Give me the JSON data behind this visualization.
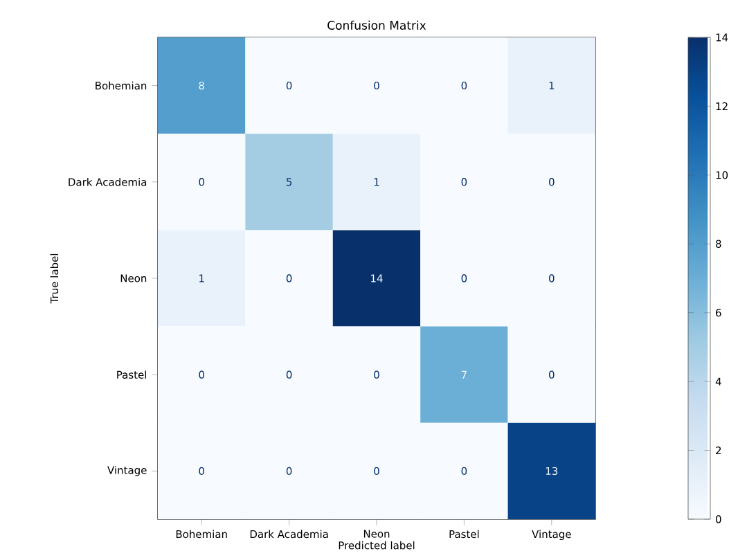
{
  "chart_data": {
    "type": "heatmap",
    "title": "Confusion Matrix",
    "xlabel": "Predicted label",
    "ylabel": "True label",
    "categories": [
      "Bohemian",
      "Dark Academia",
      "Neon",
      "Pastel",
      "Vintage"
    ],
    "y_categories": [
      "Bohemian",
      "Dark Academia",
      "Neon",
      "Pastel",
      "Vintage"
    ],
    "cells": [
      [
        8,
        0,
        0,
        0,
        1
      ],
      [
        0,
        5,
        1,
        0,
        0
      ],
      [
        1,
        0,
        14,
        0,
        0
      ],
      [
        0,
        0,
        0,
        7,
        0
      ],
      [
        0,
        0,
        0,
        0,
        13
      ]
    ],
    "data_labels": true,
    "clim": [
      0,
      14
    ],
    "cticks": [
      0,
      2,
      4,
      6,
      8,
      10,
      12,
      14
    ]
  }
}
